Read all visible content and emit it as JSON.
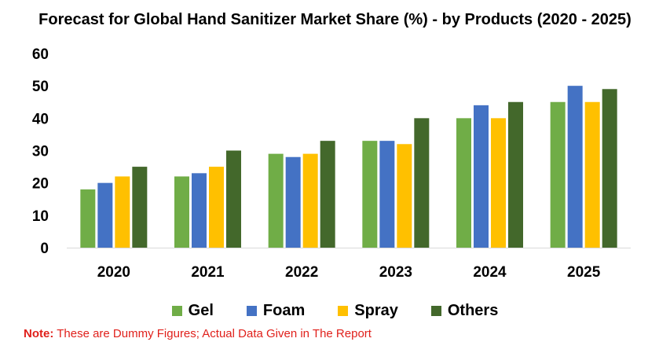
{
  "chart_data": {
    "type": "bar",
    "title": "Forecast for Global Hand Sanitizer Market Share (%) - by Products (2020 - 2025)",
    "xlabel": "",
    "ylabel": "",
    "categories": [
      "2020",
      "2021",
      "2022",
      "2023",
      "2024",
      "2025"
    ],
    "ylim": [
      0,
      60
    ],
    "yticks": [
      0,
      10,
      20,
      30,
      40,
      50,
      60
    ],
    "grid": false,
    "legend_position": "bottom",
    "series": [
      {
        "name": "Gel",
        "color": "#70ad47",
        "values": [
          18,
          22,
          29,
          33,
          40,
          45
        ]
      },
      {
        "name": "Foam",
        "color": "#4472c4",
        "values": [
          20,
          23,
          28,
          33,
          44,
          50
        ]
      },
      {
        "name": "Spray",
        "color": "#ffc000",
        "values": [
          22,
          25,
          29,
          32,
          40,
          45
        ]
      },
      {
        "name": "Others",
        "color": "#43682b",
        "values": [
          25,
          30,
          33,
          40,
          45,
          49
        ]
      }
    ]
  },
  "note": {
    "label": "Note:",
    "text": " These are Dummy Figures; Actual Data Given in The Report"
  }
}
